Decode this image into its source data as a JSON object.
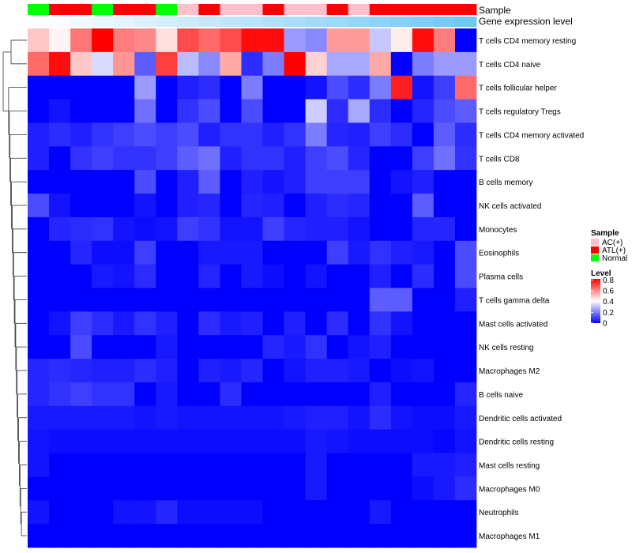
{
  "chart_data": {
    "type": "heatmap",
    "title": "",
    "annotation_labels": [
      "Sample",
      "Gene expression level"
    ],
    "sample_groups": [
      "Normal",
      "ATL(+)",
      "ATL(+)",
      "Normal",
      "ATL(+)",
      "ATL(+)",
      "Normal",
      "AC(+)",
      "ATL(+)",
      "AC(+)",
      "AC(+)",
      "ATL(+)",
      "AC(+)",
      "AC(+)",
      "ATL(+)",
      "AC(+)",
      "ATL(+)",
      "ATL(+)",
      "ATL(+)",
      "ATL(+)",
      "ATL(+)"
    ],
    "gene_expression_level": [
      0.02,
      0.05,
      0.1,
      0.15,
      0.2,
      0.25,
      0.3,
      0.35,
      0.4,
      0.45,
      0.5,
      0.55,
      0.6,
      0.65,
      0.7,
      0.75,
      0.8,
      0.85,
      0.9,
      0.95,
      1.0
    ],
    "rows": [
      "T cells CD4 memory resting",
      "T cells CD4 naive",
      "T cells follicular helper",
      "T cells regulatory  Tregs",
      "T cells CD4 memory activated",
      "T cells CD8",
      "B cells memory",
      "NK cells activated",
      "Monocytes",
      "Eosinophils",
      "Plasma cells",
      "T cells gamma delta",
      "Mast cells activated",
      "NK cells resting",
      "Macrophages M2",
      "B cells naive",
      "Dendritic cells activated",
      "Dendritic cells resting",
      "Mast cells resting",
      "Macrophages M0",
      "Neutrophils",
      "Macrophages M1"
    ],
    "values": [
      [
        0.5,
        0.43,
        0.63,
        0.82,
        0.62,
        0.6,
        0.46,
        0.7,
        0.65,
        0.7,
        0.8,
        0.8,
        0.25,
        0.22,
        0.57,
        0.57,
        0.32,
        0.44,
        0.8,
        0.62,
        0.0
      ],
      [
        0.65,
        0.8,
        0.5,
        0.35,
        0.58,
        0.15,
        0.72,
        0.3,
        0.22,
        0.55,
        0.07,
        0.2,
        0.82,
        0.48,
        0.27,
        0.27,
        0.55,
        0.0,
        0.2,
        0.25,
        0.25
      ],
      [
        0.0,
        0.0,
        0.0,
        0.0,
        0.0,
        0.25,
        0.0,
        0.05,
        0.07,
        0.0,
        0.2,
        0.0,
        0.0,
        0.03,
        0.12,
        0.07,
        0.2,
        0.77,
        0.03,
        0.1,
        0.65
      ],
      [
        0.0,
        0.03,
        0.0,
        0.0,
        0.0,
        0.18,
        0.0,
        0.08,
        0.12,
        0.0,
        0.12,
        0.0,
        0.0,
        0.33,
        0.07,
        0.27,
        0.07,
        0.0,
        0.06,
        0.12,
        0.15
      ],
      [
        0.05,
        0.07,
        0.05,
        0.08,
        0.1,
        0.12,
        0.1,
        0.12,
        0.05,
        0.08,
        0.08,
        0.05,
        0.08,
        0.2,
        0.06,
        0.05,
        0.1,
        0.07,
        0.0,
        0.15,
        0.07
      ],
      [
        0.05,
        0.0,
        0.08,
        0.1,
        0.08,
        0.08,
        0.1,
        0.15,
        0.18,
        0.05,
        0.08,
        0.08,
        0.05,
        0.1,
        0.12,
        0.06,
        0.0,
        0.0,
        0.1,
        0.18,
        0.08
      ],
      [
        0.0,
        0.0,
        0.0,
        0.0,
        0.0,
        0.12,
        0.0,
        0.05,
        0.15,
        0.0,
        0.05,
        0.03,
        0.05,
        0.1,
        0.1,
        0.1,
        0.0,
        0.03,
        0.05,
        0.0,
        0.0
      ],
      [
        0.12,
        0.03,
        0.0,
        0.0,
        0.0,
        0.03,
        0.0,
        0.05,
        0.06,
        0.0,
        0.06,
        0.05,
        0.0,
        0.05,
        0.07,
        0.06,
        0.0,
        0.0,
        0.15,
        0.0,
        0.0
      ],
      [
        0.0,
        0.06,
        0.07,
        0.08,
        0.03,
        0.02,
        0.03,
        0.1,
        0.08,
        0.03,
        0.03,
        0.1,
        0.06,
        0.05,
        0.05,
        0.03,
        0.0,
        0.0,
        0.06,
        0.06,
        0.0
      ],
      [
        0.0,
        0.0,
        0.06,
        0.02,
        0.02,
        0.1,
        0.0,
        0.0,
        0.04,
        0.04,
        0.04,
        0.0,
        0.0,
        0.0,
        0.1,
        0.04,
        0.08,
        0.05,
        0.04,
        0.0,
        0.12
      ],
      [
        0.0,
        0.0,
        0.0,
        0.04,
        0.03,
        0.07,
        0.0,
        0.0,
        0.06,
        0.0,
        0.04,
        0.02,
        0.0,
        0.03,
        0.0,
        0.0,
        0.05,
        0.0,
        0.07,
        0.0,
        0.12
      ],
      [
        0.0,
        0.0,
        0.0,
        0.0,
        0.0,
        0.0,
        0.0,
        0.0,
        0.0,
        0.0,
        0.0,
        0.0,
        0.0,
        0.0,
        0.0,
        0.0,
        0.15,
        0.15,
        0.0,
        0.0,
        0.05
      ],
      [
        0.0,
        0.03,
        0.1,
        0.07,
        0.04,
        0.08,
        0.05,
        0.0,
        0.07,
        0.04,
        0.05,
        0.0,
        0.05,
        0.0,
        0.07,
        0.0,
        0.08,
        0.03,
        0.0,
        0.0,
        0.0
      ],
      [
        0.0,
        0.0,
        0.12,
        0.0,
        0.0,
        0.0,
        0.04,
        0.0,
        0.0,
        0.0,
        0.0,
        0.06,
        0.04,
        0.08,
        0.0,
        0.03,
        0.05,
        0.0,
        0.0,
        0.0,
        0.0
      ],
      [
        0.06,
        0.07,
        0.06,
        0.05,
        0.05,
        0.07,
        0.05,
        0.0,
        0.05,
        0.04,
        0.06,
        0.0,
        0.03,
        0.05,
        0.05,
        0.04,
        0.0,
        0.02,
        0.03,
        0.0,
        0.0
      ],
      [
        0.06,
        0.08,
        0.1,
        0.08,
        0.08,
        0.0,
        0.04,
        0.0,
        0.0,
        0.07,
        0.0,
        0.0,
        0.0,
        0.0,
        0.0,
        0.0,
        0.05,
        0.0,
        0.0,
        0.0,
        0.06
      ],
      [
        0.04,
        0.04,
        0.04,
        0.04,
        0.04,
        0.03,
        0.04,
        0.03,
        0.03,
        0.03,
        0.03,
        0.03,
        0.04,
        0.05,
        0.05,
        0.03,
        0.07,
        0.03,
        0.02,
        0.02,
        0.04
      ],
      [
        0.03,
        0.02,
        0.02,
        0.02,
        0.02,
        0.02,
        0.02,
        0.02,
        0.02,
        0.02,
        0.02,
        0.02,
        0.02,
        0.04,
        0.03,
        0.02,
        0.02,
        0.02,
        0.02,
        0.01,
        0.03
      ],
      [
        0.03,
        0.0,
        0.0,
        0.0,
        0.0,
        0.0,
        0.0,
        0.0,
        0.0,
        0.0,
        0.0,
        0.0,
        0.0,
        0.04,
        0.0,
        0.0,
        0.0,
        0.0,
        0.04,
        0.04,
        0.05
      ],
      [
        0.0,
        0.0,
        0.0,
        0.0,
        0.0,
        0.0,
        0.0,
        0.0,
        0.0,
        0.0,
        0.0,
        0.0,
        0.0,
        0.04,
        0.0,
        0.0,
        0.0,
        0.0,
        0.02,
        0.04,
        0.07
      ],
      [
        0.03,
        0.0,
        0.0,
        0.0,
        0.03,
        0.03,
        0.06,
        0.02,
        0.02,
        0.02,
        0.02,
        0.0,
        0.0,
        0.0,
        0.0,
        0.0,
        0.04,
        0.0,
        0.0,
        0.0,
        0.0
      ],
      [
        0.0,
        0.0,
        0.0,
        0.0,
        0.0,
        0.0,
        0.0,
        0.0,
        0.0,
        0.0,
        0.0,
        0.0,
        0.0,
        0.0,
        0.0,
        0.0,
        0.0,
        0.0,
        0.0,
        0.0,
        0.0
      ]
    ],
    "legend": {
      "sample_title": "Sample",
      "sample_entries": [
        {
          "name": "AC(+)",
          "color": "#ffc0cb"
        },
        {
          "name": "ATL(+)",
          "color": "#ff0000"
        },
        {
          "name": "Normal",
          "color": "#00ff00"
        }
      ],
      "level_title": "Level",
      "level_ticks": [
        "0.8",
        "0.6",
        "0.4",
        "0.2",
        "0"
      ],
      "level_tick_values": [
        0.8,
        0.6,
        0.4,
        0.2,
        0
      ]
    },
    "color_scale": {
      "low": "#0000ff",
      "mid": "#ffffff",
      "high": "#ff0000",
      "range": [
        0,
        0.82
      ],
      "midpoint": 0.41
    },
    "annotation_scale": {
      "low": "#ffffff",
      "high": "#6ec8f5"
    }
  }
}
